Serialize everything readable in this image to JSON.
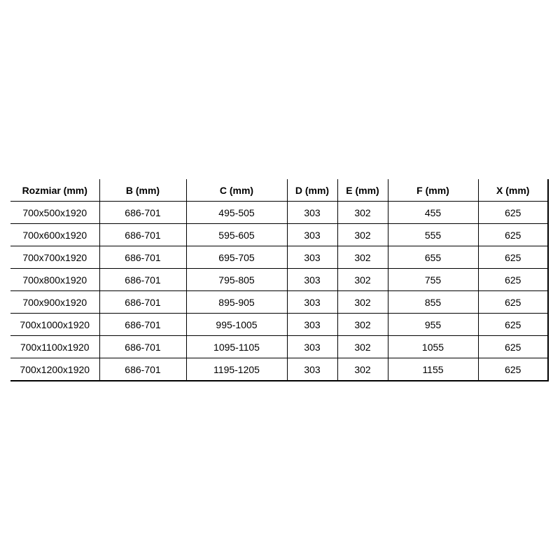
{
  "table": {
    "headers": [
      "Rozmiar (mm)",
      "B (mm)",
      "C (mm)",
      "D (mm)",
      "E (mm)",
      "F (mm)",
      "X (mm)"
    ],
    "rows": [
      [
        "700x500x1920",
        "686-701",
        "495-505",
        "303",
        "302",
        "455",
        "625"
      ],
      [
        "700x600x1920",
        "686-701",
        "595-605",
        "303",
        "302",
        "555",
        "625"
      ],
      [
        "700x700x1920",
        "686-701",
        "695-705",
        "303",
        "302",
        "655",
        "625"
      ],
      [
        "700x800x1920",
        "686-701",
        "795-805",
        "303",
        "302",
        "755",
        "625"
      ],
      [
        "700x900x1920",
        "686-701",
        "895-905",
        "303",
        "302",
        "855",
        "625"
      ],
      [
        "700x1000x1920",
        "686-701",
        "995-1005",
        "303",
        "302",
        "955",
        "625"
      ],
      [
        "700x1100x1920",
        "686-701",
        "1095-1105",
        "303",
        "302",
        "1055",
        "625"
      ],
      [
        "700x1200x1920",
        "686-701",
        "1195-1205",
        "303",
        "302",
        "1155",
        "625"
      ]
    ]
  }
}
